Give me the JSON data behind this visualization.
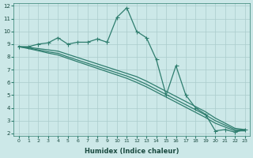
{
  "xlabel": "Humidex (Indice chaleur)",
  "background_color": "#cce8e8",
  "line_color": "#2e7d6e",
  "grid_color": "#aacccc",
  "xlim": [
    -0.5,
    23.5
  ],
  "ylim": [
    1.8,
    12.2
  ],
  "xticks": [
    0,
    1,
    2,
    3,
    4,
    5,
    6,
    7,
    8,
    9,
    10,
    11,
    12,
    13,
    14,
    15,
    16,
    17,
    18,
    19,
    20,
    21,
    22,
    23
  ],
  "yticks": [
    2,
    3,
    4,
    5,
    6,
    7,
    8,
    9,
    10,
    11,
    12
  ],
  "line_main": {
    "x": [
      0,
      1,
      2,
      3,
      4,
      5,
      6,
      7,
      8,
      9,
      10,
      11,
      12,
      13,
      14,
      15,
      16,
      17,
      18,
      19,
      20,
      21,
      22,
      23
    ],
    "y": [
      8.8,
      8.8,
      9.0,
      9.1,
      9.5,
      9.0,
      9.15,
      9.15,
      9.4,
      9.15,
      11.1,
      11.85,
      10.0,
      9.5,
      7.8,
      5.0,
      7.3,
      5.0,
      4.0,
      3.5,
      2.2,
      2.3,
      2.1,
      2.3
    ]
  },
  "line_straight1": {
    "x": [
      0,
      1,
      2,
      3,
      4,
      5,
      6,
      7,
      8,
      9,
      10,
      11,
      12,
      13,
      14,
      15,
      16,
      17,
      18,
      19,
      20,
      21,
      22,
      23
    ],
    "y": [
      8.8,
      8.75,
      8.65,
      8.55,
      8.45,
      8.2,
      7.95,
      7.7,
      7.45,
      7.2,
      6.95,
      6.7,
      6.45,
      6.1,
      5.7,
      5.3,
      4.9,
      4.5,
      4.1,
      3.7,
      3.2,
      2.8,
      2.4,
      2.3
    ]
  },
  "line_straight2": {
    "x": [
      0,
      1,
      2,
      3,
      4,
      5,
      6,
      7,
      8,
      9,
      10,
      11,
      12,
      13,
      14,
      15,
      16,
      17,
      18,
      19,
      20,
      21,
      22,
      23
    ],
    "y": [
      8.8,
      8.7,
      8.55,
      8.4,
      8.28,
      8.0,
      7.75,
      7.5,
      7.25,
      7.0,
      6.75,
      6.5,
      6.2,
      5.85,
      5.45,
      5.05,
      4.65,
      4.25,
      3.85,
      3.45,
      3.0,
      2.65,
      2.3,
      2.25
    ]
  },
  "line_straight3": {
    "x": [
      0,
      1,
      2,
      3,
      4,
      5,
      6,
      7,
      8,
      9,
      10,
      11,
      12,
      13,
      14,
      15,
      16,
      17,
      18,
      19,
      20,
      21,
      22,
      23
    ],
    "y": [
      8.8,
      8.65,
      8.48,
      8.3,
      8.15,
      7.88,
      7.62,
      7.36,
      7.1,
      6.84,
      6.58,
      6.32,
      6.0,
      5.65,
      5.25,
      4.85,
      4.45,
      4.05,
      3.65,
      3.25,
      2.8,
      2.5,
      2.2,
      2.2
    ]
  }
}
